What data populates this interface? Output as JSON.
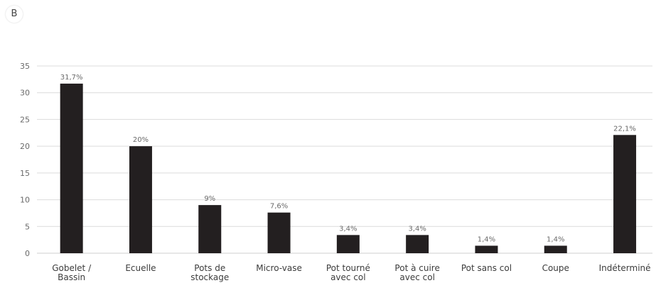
{
  "panel": {
    "label": "B"
  },
  "chart_data": {
    "type": "bar",
    "title": "",
    "xlabel": "",
    "ylabel": "",
    "ylim": [
      0,
      35
    ],
    "yticks": [
      0,
      5,
      10,
      15,
      20,
      25,
      30,
      35
    ],
    "grid": true,
    "legend": "none",
    "categories": [
      "Gobelet / Bassin",
      "Ecuelle",
      "Pots de stockage",
      "Micro-vase",
      "Pot tourné avec col",
      "Pot à cuire avec col",
      "Pot sans col",
      "Coupe",
      "Indéterminé"
    ],
    "category_lines": [
      [
        "Gobelet /",
        "Bassin"
      ],
      [
        "Ecuelle"
      ],
      [
        "Pots de",
        "stockage"
      ],
      [
        "Micro-vase"
      ],
      [
        "Pot tourné",
        "avec col"
      ],
      [
        "Pot à cuire",
        "avec col"
      ],
      [
        "Pot sans col"
      ],
      [
        "Coupe"
      ],
      [
        "Indéterminé"
      ]
    ],
    "values": [
      31.7,
      20,
      9,
      7.6,
      3.4,
      3.4,
      1.4,
      1.4,
      22.1
    ],
    "data_labels": [
      "31,7%",
      "20%",
      "9%",
      "7,6%",
      "3,4%",
      "3,4%",
      "1,4%",
      "1,4%",
      "22,1%"
    ],
    "colors": {
      "bar": "#231f20",
      "grid": "#dcdcdc",
      "axis": "#cfcfcf"
    }
  }
}
